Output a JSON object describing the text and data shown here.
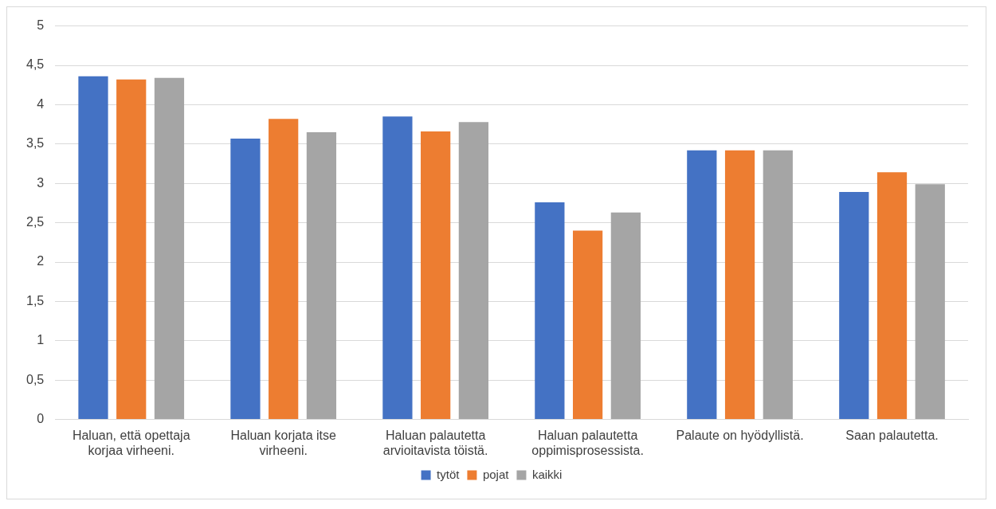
{
  "chart_data": {
    "type": "bar",
    "categories": [
      "Haluan, että opettaja korjaa virheeni.",
      "Haluan korjata itse virheeni.",
      "Haluan palautetta arvioitavista töistä.",
      "Haluan palautetta oppimisprosessista.",
      "Palaute on hyödyllistä.",
      "Saan palautetta."
    ],
    "series": [
      {
        "name": "tytöt",
        "color": "#4472c4",
        "values": [
          4.36,
          3.57,
          3.85,
          2.76,
          3.42,
          2.89
        ]
      },
      {
        "name": "pojat",
        "color": "#ed7d31",
        "values": [
          4.32,
          3.82,
          3.66,
          2.4,
          3.42,
          3.14
        ]
      },
      {
        "name": "kaikki",
        "color": "#a5a5a5",
        "values": [
          4.34,
          3.65,
          3.78,
          2.63,
          3.42,
          2.99
        ]
      }
    ],
    "ylim": [
      0,
      5
    ],
    "yticks": [
      0,
      {
        "value": 0.5,
        "label": "0,5"
      },
      1,
      {
        "value": 1.5,
        "label": "1,5"
      },
      2,
      {
        "value": 2.5,
        "label": "2,5"
      },
      3,
      {
        "value": 3.5,
        "label": "3,5"
      },
      4,
      {
        "value": 4.5,
        "label": "4,5"
      },
      5
    ],
    "grid": "y",
    "legend": "bottom"
  }
}
